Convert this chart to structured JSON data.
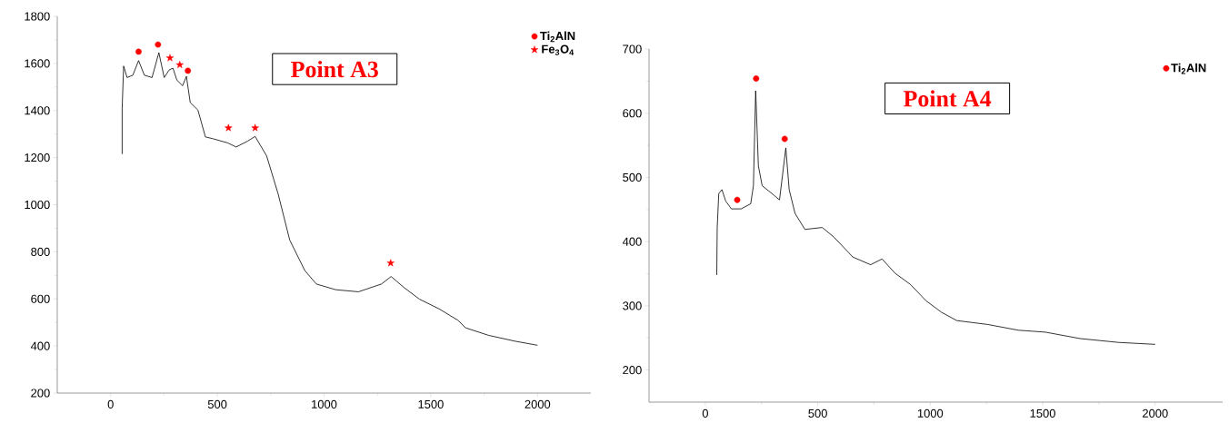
{
  "chart_data": [
    {
      "type": "line",
      "annotations": [
        "Point A3"
      ],
      "xlim": [
        -250,
        2250
      ],
      "ylim": [
        200,
        1800
      ],
      "xticks": [
        0,
        500,
        1000,
        1500,
        2000
      ],
      "yticks": [
        200,
        400,
        600,
        800,
        1000,
        1200,
        1400,
        1600,
        1800
      ],
      "grid": false,
      "legend": "top right",
      "series": [
        {
          "color": "#000000",
          "line_style": "solid",
          "x": [
            54,
            54,
            61,
            77,
            104,
            131,
            158,
            194,
            226,
            251,
            274,
            292,
            310,
            337,
            355,
            373,
            409,
            444,
            480,
            550,
            588,
            642,
            677,
            731,
            785,
            839,
            910,
            964,
            1054,
            1161,
            1269,
            1314,
            1376,
            1448,
            1538,
            1627,
            1663,
            1771,
            1896,
            2000
          ],
          "values": [
            1215,
            1410,
            1589,
            1540,
            1550,
            1612,
            1550,
            1540,
            1646,
            1540,
            1572,
            1580,
            1530,
            1505,
            1545,
            1434,
            1402,
            1288,
            1280,
            1262,
            1245,
            1270,
            1290,
            1207,
            1045,
            850,
            720,
            663,
            639,
            630,
            663,
            695,
            647,
            598,
            558,
            509,
            477,
            445,
            420,
            403
          ]
        },
        {
          "type": "scatter",
          "name": "Ti$_{2}$AlN",
          "color": "#ff0000",
          "marker": "circle",
          "x": [
            131,
            222,
            362
          ],
          "values": [
            1650,
            1680,
            1569
          ]
        },
        {
          "type": "scatter",
          "name": "Fe$_{3}$O$_{4}$",
          "color": "#ff0000",
          "marker": "star",
          "x": [
            278,
            324,
            552,
            677,
            1312
          ],
          "values": [
            1623,
            1594,
            1326,
            1326,
            752
          ]
        }
      ]
    },
    {
      "type": "line",
      "annotations": [
        "Point A4"
      ],
      "xlim": [
        -250,
        2300
      ],
      "ylim": [
        150,
        700
      ],
      "xticks": [
        0,
        500,
        1000,
        1500,
        2000
      ],
      "yticks": [
        200,
        300,
        400,
        500,
        600,
        700
      ],
      "grid": false,
      "legend": "top right",
      "series": [
        {
          "color": "#000000",
          "line_style": "solid",
          "x": [
            51,
            53,
            60,
            74,
            91,
            116,
            159,
            202,
            214,
            224,
            236,
            253,
            296,
            330,
            358,
            373,
            399,
            443,
            520,
            572,
            656,
            735,
            786,
            843,
            913,
            981,
            1050,
            1118,
            1255,
            1392,
            1512,
            1666,
            1837,
            2000
          ],
          "values": [
            348,
            422,
            475,
            481,
            463,
            451,
            451,
            459,
            487,
            635,
            518,
            487,
            475,
            465,
            546,
            481,
            444,
            419,
            422,
            407,
            376,
            364,
            373,
            351,
            333,
            308,
            290,
            277,
            271,
            262,
            259,
            249,
            243,
            240
          ]
        },
        {
          "type": "scatter",
          "name": "Ti$_{2}$AlN",
          "color": "#ff0000",
          "marker": "circle",
          "x": [
            142,
            226,
            353
          ],
          "values": [
            465,
            654,
            560
          ]
        }
      ]
    }
  ]
}
